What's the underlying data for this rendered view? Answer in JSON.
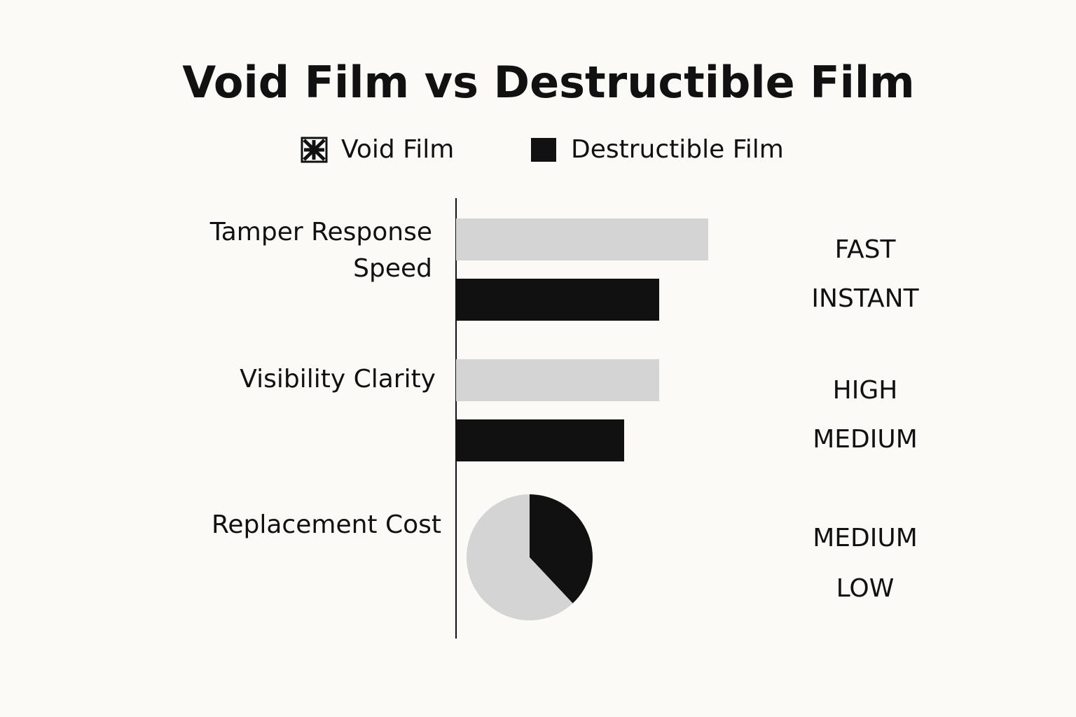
{
  "chart_data": [
    {
      "type": "bar",
      "title": "Void Film vs Destructible Film",
      "categories": [
        "Tamper Response Speed",
        "Visibility Clarity"
      ],
      "series": [
        {
          "name": "Void Film",
          "color": "#d4d4d4",
          "values": [
            72,
            58
          ],
          "ratings": [
            "FAST",
            "HIGH"
          ]
        },
        {
          "name": "Destructible Film",
          "color": "#111111",
          "values": [
            58,
            48
          ],
          "ratings": [
            "INSTANT",
            "MEDIUM"
          ]
        }
      ],
      "xlim": [
        0,
        100
      ]
    },
    {
      "type": "pie",
      "category": "Replacement Cost",
      "values": [
        62,
        38
      ],
      "colors": [
        "#d4d4d4",
        "#111111"
      ],
      "ratings": [
        "MEDIUM",
        "LOW"
      ]
    }
  ]
}
